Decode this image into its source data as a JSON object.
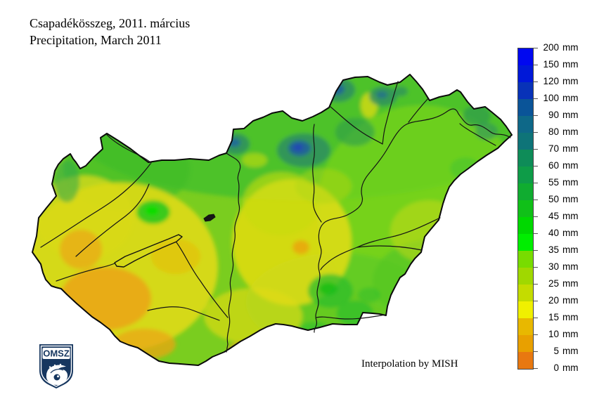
{
  "title": {
    "line1": "Csapadékösszeg, 2011. március",
    "line2": "Precipitation, March 2011"
  },
  "attribution": "Interpolation by MISH",
  "logo": {
    "text": "OMSZ"
  },
  "legend": {
    "unit": "mm",
    "labels": [
      "200 mm",
      "150 mm",
      "120 mm",
      "100 mm",
      "90 mm",
      "80 mm",
      "70 mm",
      "60 mm",
      "55 mm",
      "50 mm",
      "45 mm",
      "40 mm",
      "35 mm",
      "30 mm",
      "25 mm",
      "20 mm",
      "15 mm",
      "10 mm",
      "5 mm",
      "0 mm"
    ],
    "segment_colors": [
      "#0008F0",
      "#0018D8",
      "#0832B8",
      "#0A5498",
      "#0E6888",
      "#0E7478",
      "#0E8C58",
      "#0E9C48",
      "#10AC30",
      "#10C018",
      "#00D800",
      "#00EE00",
      "#78DC00",
      "#A0D800",
      "#C4DC00",
      "#F0F000",
      "#E8B800",
      "#E8A000",
      "#E87810"
    ]
  },
  "map": {
    "region": "Hungary",
    "quantity": "Monthly precipitation total",
    "period": "March 2011",
    "scale_min_mm": 0,
    "scale_max_mm": 200
  }
}
